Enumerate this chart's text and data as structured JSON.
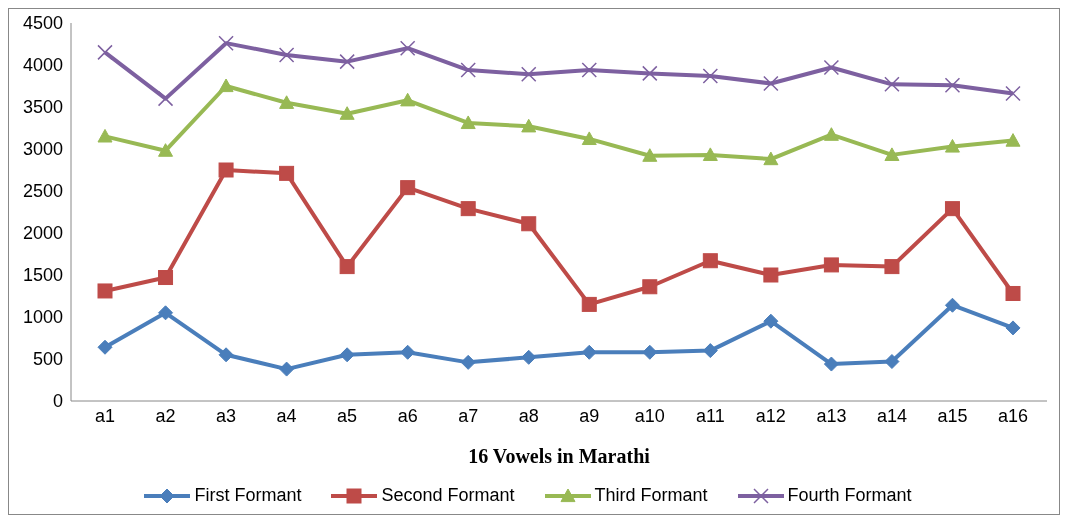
{
  "chart_data": {
    "type": "line",
    "xlabel": "16 Vowels in Marathi",
    "categories": [
      "a1",
      "a2",
      "a3",
      "a4",
      "a5",
      "a6",
      "a7",
      "a8",
      "a9",
      "a10",
      "a11",
      "a12",
      "a13",
      "a14",
      "a15",
      "a16"
    ],
    "series": [
      {
        "name": "First Formant",
        "color": "#4a7ebb",
        "marker": "diamond",
        "values": [
          640,
          1050,
          550,
          380,
          550,
          580,
          460,
          520,
          580,
          580,
          600,
          950,
          440,
          470,
          1140,
          870
        ]
      },
      {
        "name": "Second Formant",
        "color": "#be4b48",
        "marker": "square",
        "values": [
          1310,
          1470,
          2750,
          2710,
          1600,
          2540,
          2290,
          2110,
          1150,
          1360,
          1670,
          1500,
          1620,
          1600,
          2290,
          1280
        ]
      },
      {
        "name": "Third Formant",
        "color": "#98b954",
        "marker": "triangle",
        "values": [
          3150,
          2980,
          3750,
          3550,
          3420,
          3580,
          3310,
          3270,
          3120,
          2920,
          2930,
          2880,
          3170,
          2930,
          3030,
          3100
        ]
      },
      {
        "name": "Fourth Formant",
        "color": "#7d60a0",
        "marker": "cross",
        "values": [
          4150,
          3600,
          4260,
          4120,
          4040,
          4200,
          3940,
          3890,
          3940,
          3900,
          3870,
          3780,
          3970,
          3770,
          3760,
          3660
        ]
      }
    ],
    "ylim": [
      0,
      4500
    ],
    "yticks": [
      0,
      500,
      1000,
      1500,
      2000,
      2500,
      3000,
      3500,
      4000,
      4500
    ],
    "grid": false,
    "legend": "bottom"
  }
}
